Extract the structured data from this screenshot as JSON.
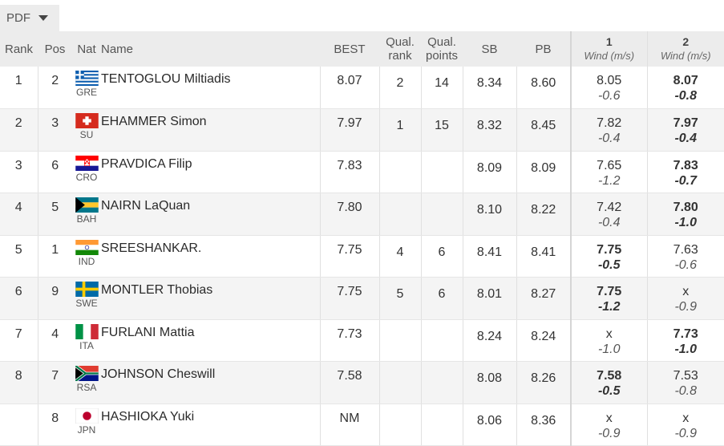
{
  "toolbar": {
    "pdf_label": "PDF"
  },
  "headers": {
    "rank": "Rank",
    "pos": "Pos",
    "nat": "Nat",
    "name": "Name",
    "best": "BEST",
    "qual_rank_1": "Qual.",
    "qual_rank_2": "rank",
    "qual_points_1": "Qual.",
    "qual_points_2": "points",
    "sb": "SB",
    "pb": "PB",
    "att1_num": "1",
    "att2_num": "2",
    "wind": "Wind (m/s)"
  },
  "rows": [
    {
      "rank": "1",
      "pos": "2",
      "nat": "GRE",
      "name": "TENTOGLOU Miltiadis",
      "best": "8.07",
      "qrank": "2",
      "qpoints": "14",
      "sb": "8.34",
      "pb": "8.60",
      "a1": "8.05",
      "w1": "-0.6",
      "a2": "8.07",
      "w2": "-0.8",
      "best_att": 2
    },
    {
      "rank": "2",
      "pos": "3",
      "nat": "SU",
      "name": "EHAMMER Simon",
      "best": "7.97",
      "qrank": "1",
      "qpoints": "15",
      "sb": "8.32",
      "pb": "8.45",
      "a1": "7.82",
      "w1": "-0.4",
      "a2": "7.97",
      "w2": "-0.4",
      "best_att": 2
    },
    {
      "rank": "3",
      "pos": "6",
      "nat": "CRO",
      "name": "PRAVDICA Filip",
      "best": "7.83",
      "qrank": "",
      "qpoints": "",
      "sb": "8.09",
      "pb": "8.09",
      "a1": "7.65",
      "w1": "-1.2",
      "a2": "7.83",
      "w2": "-0.7",
      "best_att": 2
    },
    {
      "rank": "4",
      "pos": "5",
      "nat": "BAH",
      "name": "NAIRN LaQuan",
      "best": "7.80",
      "qrank": "",
      "qpoints": "",
      "sb": "8.10",
      "pb": "8.22",
      "a1": "7.42",
      "w1": "-0.4",
      "a2": "7.80",
      "w2": "-1.0",
      "best_att": 2
    },
    {
      "rank": "5",
      "pos": "1",
      "nat": "IND",
      "name": "SREESHANKAR.",
      "best": "7.75",
      "qrank": "4",
      "qpoints": "6",
      "sb": "8.41",
      "pb": "8.41",
      "a1": "7.75",
      "w1": "-0.5",
      "a2": "7.63",
      "w2": "-0.6",
      "best_att": 1
    },
    {
      "rank": "6",
      "pos": "9",
      "nat": "SWE",
      "name": "MONTLER Thobias",
      "best": "7.75",
      "qrank": "5",
      "qpoints": "6",
      "sb": "8.01",
      "pb": "8.27",
      "a1": "7.75",
      "w1": "-1.2",
      "a2": "x",
      "w2": "-0.9",
      "best_att": 1
    },
    {
      "rank": "7",
      "pos": "4",
      "nat": "ITA",
      "name": "FURLANI Mattia",
      "best": "7.73",
      "qrank": "",
      "qpoints": "",
      "sb": "8.24",
      "pb": "8.24",
      "a1": "x",
      "w1": "-1.0",
      "a2": "7.73",
      "w2": "-1.0",
      "best_att": 2
    },
    {
      "rank": "8",
      "pos": "7",
      "nat": "RSA",
      "name": "JOHNSON Cheswill",
      "best": "7.58",
      "qrank": "",
      "qpoints": "",
      "sb": "8.08",
      "pb": "8.26",
      "a1": "7.58",
      "w1": "-0.5",
      "a2": "7.53",
      "w2": "-0.8",
      "best_att": 1
    },
    {
      "rank": "",
      "pos": "8",
      "nat": "JPN",
      "name": "HASHIOKA Yuki",
      "best": "NM",
      "qrank": "",
      "qpoints": "",
      "sb": "8.06",
      "pb": "8.36",
      "a1": "x",
      "w1": "-0.9",
      "a2": "x",
      "w2": "-0.9",
      "best_att": 0
    }
  ]
}
